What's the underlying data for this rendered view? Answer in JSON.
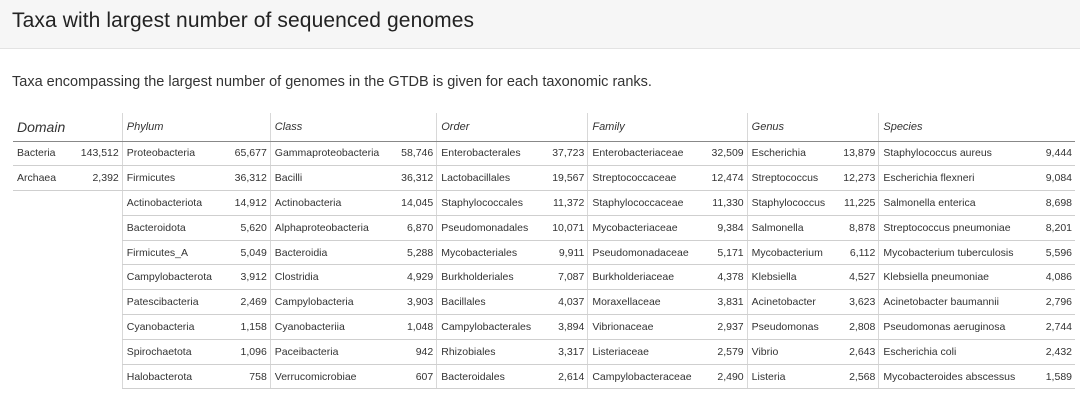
{
  "header": {
    "title": "Taxa with largest number of sequenced genomes"
  },
  "intro": "Taxa encompassing the largest number of genomes in the GTDB is given for each taxonomic ranks.",
  "table": {
    "columns": [
      "Domain",
      "Phylum",
      "Class",
      "Order",
      "Family",
      "Genus",
      "Species"
    ],
    "domain": [
      {
        "name": "Bacteria",
        "count": "143,512"
      },
      {
        "name": "Archaea",
        "count": "2,392"
      }
    ],
    "rows": [
      {
        "phylum": "Proteobacteria",
        "phylum_n": "65,677",
        "class": "Gammaproteobacteria",
        "class_n": "58,746",
        "order": "Enterobacterales",
        "order_n": "37,723",
        "family": "Enterobacteriaceae",
        "family_n": "32,509",
        "genus": "Escherichia",
        "genus_n": "13,879",
        "species": "Staphylococcus aureus",
        "species_n": "9,444"
      },
      {
        "phylum": "Firmicutes",
        "phylum_n": "36,312",
        "class": "Bacilli",
        "class_n": "36,312",
        "order": "Lactobacillales",
        "order_n": "19,567",
        "family": "Streptococcaceae",
        "family_n": "12,474",
        "genus": "Streptococcus",
        "genus_n": "12,273",
        "species": "Escherichia flexneri",
        "species_n": "9,084"
      },
      {
        "phylum": "Actinobacteriota",
        "phylum_n": "14,912",
        "class": "Actinobacteria",
        "class_n": "14,045",
        "order": "Staphylococcales",
        "order_n": "11,372",
        "family": "Staphylococcaceae",
        "family_n": "11,330",
        "genus": "Staphylococcus",
        "genus_n": "11,225",
        "species": "Salmonella enterica",
        "species_n": "8,698"
      },
      {
        "phylum": "Bacteroidota",
        "phylum_n": "5,620",
        "class": "Alphaproteobacteria",
        "class_n": "6,870",
        "order": "Pseudomonadales",
        "order_n": "10,071",
        "family": "Mycobacteriaceae",
        "family_n": "9,384",
        "genus": "Salmonella",
        "genus_n": "8,878",
        "species": "Streptococcus pneumoniae",
        "species_n": "8,201"
      },
      {
        "phylum": "Firmicutes_A",
        "phylum_n": "5,049",
        "class": "Bacteroidia",
        "class_n": "5,288",
        "order": "Mycobacteriales",
        "order_n": "9,911",
        "family": "Pseudomonadaceae",
        "family_n": "5,171",
        "genus": "Mycobacterium",
        "genus_n": "6,112",
        "species": "Mycobacterium tuberculosis",
        "species_n": "5,596"
      },
      {
        "phylum": "Campylobacterota",
        "phylum_n": "3,912",
        "class": "Clostridia",
        "class_n": "4,929",
        "order": "Burkholderiales",
        "order_n": "7,087",
        "family": "Burkholderiaceae",
        "family_n": "4,378",
        "genus": "Klebsiella",
        "genus_n": "4,527",
        "species": "Klebsiella pneumoniae",
        "species_n": "4,086"
      },
      {
        "phylum": "Patescibacteria",
        "phylum_n": "2,469",
        "class": "Campylobacteria",
        "class_n": "3,903",
        "order": "Bacillales",
        "order_n": "4,037",
        "family": "Moraxellaceae",
        "family_n": "3,831",
        "genus": "Acinetobacter",
        "genus_n": "3,623",
        "species": "Acinetobacter baumannii",
        "species_n": "2,796"
      },
      {
        "phylum": "Cyanobacteria",
        "phylum_n": "1,158",
        "class": "Cyanobacteriia",
        "class_n": "1,048",
        "order": "Campylobacterales",
        "order_n": "3,894",
        "family": "Vibrionaceae",
        "family_n": "2,937",
        "genus": "Pseudomonas",
        "genus_n": "2,808",
        "species": "Pseudomonas aeruginosa",
        "species_n": "2,744"
      },
      {
        "phylum": "Spirochaetota",
        "phylum_n": "1,096",
        "class": "Paceibacteria",
        "class_n": "942",
        "order": "Rhizobiales",
        "order_n": "3,317",
        "family": "Listeriaceae",
        "family_n": "2,579",
        "genus": "Vibrio",
        "genus_n": "2,643",
        "species": "Escherichia coli",
        "species_n": "2,432"
      },
      {
        "phylum": "Halobacterota",
        "phylum_n": "758",
        "class": "Verrucomicrobiae",
        "class_n": "607",
        "order": "Bacteroidales",
        "order_n": "2,614",
        "family": "Campylobacteraceae",
        "family_n": "2,490",
        "genus": "Listeria",
        "genus_n": "2,568",
        "species": "Mycobacteroides abscessus",
        "species_n": "1,589"
      }
    ]
  }
}
